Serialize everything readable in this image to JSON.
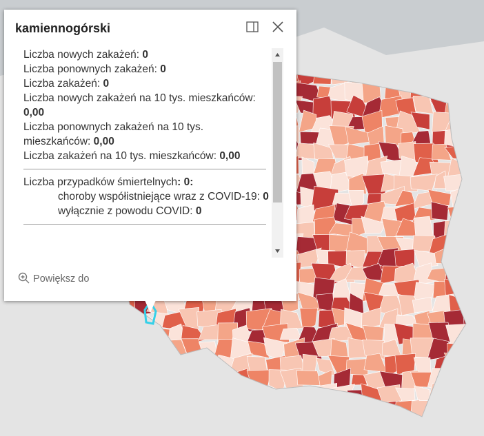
{
  "popup": {
    "title": "kamiennogórski",
    "fields": [
      {
        "label": "Liczba nowych zakażeń:",
        "value": "0"
      },
      {
        "label": "Liczba ponownych zakażeń:",
        "value": "0"
      },
      {
        "label": "Liczba zakażeń:",
        "value": "0"
      },
      {
        "label": "Liczba nowych zakażeń na 10 tys. mieszkańców:",
        "value": "0,00"
      },
      {
        "label": "Liczba ponownych zakażeń na 10 tys. mieszkańców:",
        "value": "0,00"
      },
      {
        "label": "Liczba zakażeń na 10 tys. mieszkańców:",
        "value": "0,00"
      }
    ],
    "deaths": {
      "label": "Liczba przypadków śmiertelnych",
      "value": ": 0:",
      "items": [
        {
          "label": "choroby współistniejące wraz z COVID-19:",
          "value": "0"
        },
        {
          "label": "wyłącznie z powodu COVID:",
          "value": "0"
        }
      ]
    },
    "zoom": "Powiększ do"
  }
}
